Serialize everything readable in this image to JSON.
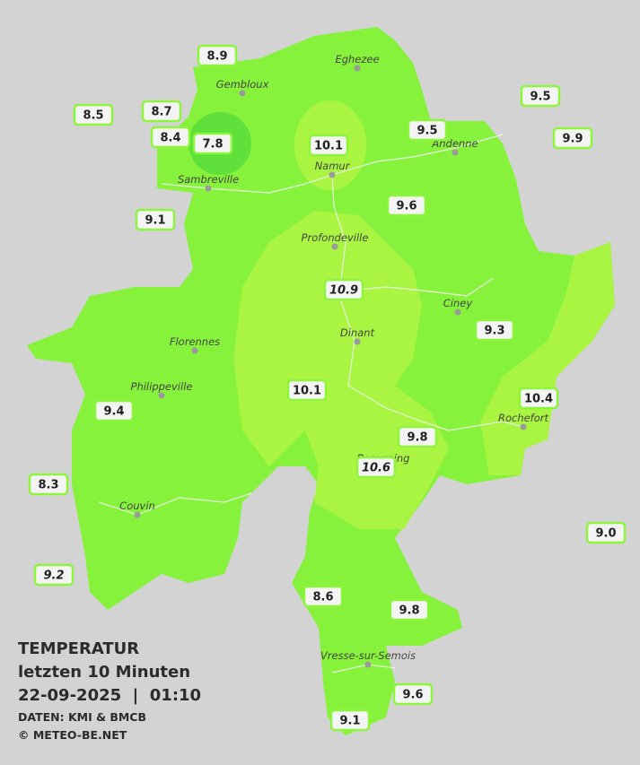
{
  "legend": {
    "title": "TEMPERATUR",
    "period": "letzten 10 Minuten",
    "datetime": "22-09-2025  |  01:10",
    "source": "DATEN: KMI & BMCB",
    "copyright": "© METEO-BE.NET"
  },
  "cities": [
    "Eghezee",
    "Gembloux",
    "Andenne",
    "Namur",
    "Sambreville",
    "Profondeville",
    "Ciney",
    "Dinant",
    "Florennes",
    "Philippeville",
    "Rochefort",
    "Beauraing",
    "Couvin",
    "Vresse-sur-Semois"
  ],
  "stations": [
    "8.9",
    "8.5",
    "8.7",
    "8.4",
    "7.8",
    "10.1",
    "9.5",
    "9.5",
    "9.9",
    "9.1",
    "9.6",
    "10.9",
    "9.3",
    "10.1",
    "10.4",
    "9.4",
    "9.8",
    "10.6",
    "8.3",
    "9.0",
    "9.2",
    "8.6",
    "9.8",
    "9.6",
    "9.1"
  ]
}
